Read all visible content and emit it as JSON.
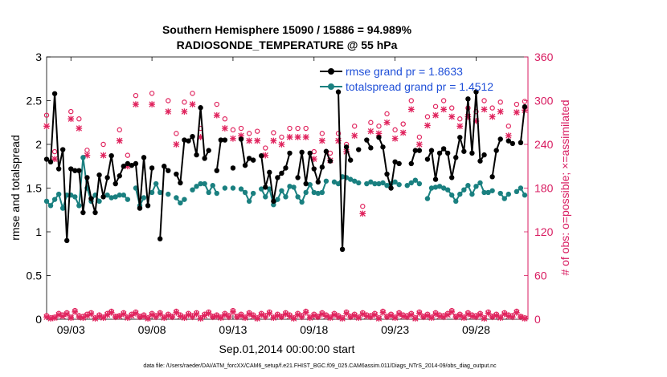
{
  "chart_data": {
    "type": "line",
    "title_line1": "Southern Hemisphere 15090 / 15886 = 94.989%",
    "title_line2": "RADIOSONDE_TEMPERATURE @ 55 hPa",
    "xlabel": "Sep.01,2014 00:00:00 start",
    "ylabel_left": "rmse and totalspread",
    "ylabel_right": "# of obs: o=possible; ×=assimilated",
    "footer": "data file: /Users/raeder/DAI/ATM_forcXX/CAM6_setup/f.e21.FHIST_BGC.f09_025.CAM6assim.011/Diags_NTrS_2014-09/obs_diag_output.nc",
    "xlim": [
      1.5,
      31.2
    ],
    "ylim_left": [
      0,
      3
    ],
    "ylim_right": [
      0,
      360
    ],
    "xticks": [
      3,
      8,
      13,
      18,
      23,
      28
    ],
    "xtick_labels": [
      "09/03",
      "09/08",
      "09/13",
      "09/18",
      "09/23",
      "09/28"
    ],
    "yticks_left": [
      0,
      0.5,
      1,
      1.5,
      2,
      2.5,
      3
    ],
    "ytick_labels_left": [
      "0",
      "0.5",
      "1",
      "1.5",
      "2",
      "2.5",
      "3"
    ],
    "yticks_right": [
      0,
      60,
      120,
      180,
      240,
      300,
      360
    ],
    "ytick_labels_right": [
      "0",
      "60",
      "120",
      "180",
      "240",
      "300",
      "360"
    ],
    "legend": [
      {
        "name": "rmse grand pr = 1.8633",
        "color": "#000000"
      },
      {
        "name": "totalspread grand pr = 1.4512",
        "color": "#1a8080"
      }
    ],
    "colors": {
      "rmse": "#000000",
      "spread": "#1a8080",
      "obs": "#e0245e",
      "legend_text": "#1f4fd8",
      "right_axis": "#d81b60"
    },
    "x": [
      1.5,
      1.75,
      2.0,
      2.25,
      2.5,
      2.75,
      3.0,
      3.25,
      3.5,
      3.75,
      4.0,
      4.25,
      4.5,
      4.75,
      5.0,
      5.25,
      5.5,
      5.75,
      6.0,
      6.25,
      6.5,
      6.75,
      7.0,
      7.25,
      7.5,
      7.75,
      8.0,
      8.25,
      8.5,
      8.75,
      9.0,
      9.25,
      9.5,
      9.75,
      10.0,
      10.25,
      10.5,
      10.75,
      11.0,
      11.25,
      11.5,
      11.75,
      12.0,
      12.25,
      12.5,
      12.75,
      13.0,
      13.25,
      13.5,
      13.75,
      14.0,
      14.25,
      14.5,
      14.75,
      15.0,
      15.25,
      15.5,
      15.75,
      16.0,
      16.25,
      16.5,
      16.75,
      17.0,
      17.25,
      17.5,
      17.75,
      18.0,
      18.25,
      18.5,
      18.75,
      19.0,
      19.25,
      19.5,
      19.75,
      20.0,
      20.25,
      20.5,
      20.75,
      21.0,
      21.25,
      21.5,
      21.75,
      22.0,
      22.25,
      22.5,
      22.75,
      23.0,
      23.25,
      23.5,
      23.75,
      24.0,
      24.25,
      24.5,
      24.75,
      25.0,
      25.25,
      25.5,
      25.75,
      26.0,
      26.25,
      26.5,
      26.75,
      27.0,
      27.25,
      27.5,
      27.75,
      28.0,
      28.25,
      28.5,
      28.75,
      29.0,
      29.25,
      29.5,
      29.75,
      30.0,
      30.25,
      30.5,
      30.75,
      31.0
    ],
    "series": [
      {
        "name": "rmse",
        "values": [
          1.83,
          1.8,
          2.58,
          1.72,
          1.94,
          0.9,
          1.72,
          1.7,
          1.7,
          1.22,
          1.62,
          1.38,
          1.22,
          1.65,
          1.4,
          1.62,
          1.87,
          1.55,
          1.64,
          1.75,
          1.78,
          1.76,
          1.78,
          1.27,
          1.85,
          1.3,
          1.73,
          null,
          0.92,
          1.75,
          1.7,
          null,
          1.66,
          1.56,
          2.05,
          2.04,
          2.09,
          1.88,
          2.42,
          1.84,
          1.93,
          null,
          1.7,
          2.05,
          2.05,
          null,
          1.73,
          null,
          2.06,
          1.76,
          1.84,
          1.82,
          null,
          1.87,
          1.51,
          1.68,
          1.35,
          1.62,
          1.67,
          1.73,
          1.9,
          null,
          1.62,
          1.91,
          1.55,
          1.9,
          1.72,
          1.57,
          1.74,
          1.92,
          1.81,
          null,
          2.6,
          0.8,
          1.97,
          1.82,
          null,
          1.94,
          null,
          2.05,
          1.96,
          null,
          2.08,
          1.97,
          1.66,
          1.5,
          1.8,
          1.78,
          null,
          null,
          1.78,
          1.93,
          1.93,
          null,
          1.83,
          1.93,
          1.6,
          1.9,
          1.95,
          1.9,
          1.62,
          1.85,
          2.08,
          1.92,
          2.52,
          1.9,
          2.6,
          1.81,
          1.88,
          null,
          1.63,
          1.93,
          2.06,
          null,
          2.04,
          2.01,
          null,
          2.02,
          2.43
        ]
      },
      {
        "name": "totalspread",
        "values": [
          1.35,
          1.3,
          1.37,
          1.43,
          1.27,
          1.42,
          1.42,
          1.4,
          1.3,
          1.85,
          1.5,
          1.35,
          1.42,
          1.35,
          null,
          1.42,
          1.39,
          1.4,
          1.42,
          1.42,
          1.37,
          null,
          1.5,
          1.3,
          1.39,
          null,
          1.45,
          1.55,
          1.45,
          null,
          1.43,
          null,
          1.39,
          1.33,
          1.37,
          null,
          1.48,
          1.52,
          1.55,
          1.55,
          1.45,
          1.53,
          1.44,
          null,
          1.5,
          null,
          1.5,
          null,
          1.49,
          1.45,
          1.35,
          1.44,
          null,
          1.49,
          1.4,
          1.49,
          1.31,
          1.37,
          1.47,
          1.4,
          1.52,
          1.51,
          1.4,
          1.34,
          1.45,
          1.54,
          1.45,
          1.44,
          1.45,
          1.58,
          null,
          1.57,
          1.55,
          1.63,
          1.62,
          1.6,
          1.58,
          1.56,
          null,
          1.55,
          1.57,
          1.55,
          1.55,
          1.56,
          1.53,
          1.55,
          1.57,
          1.54,
          null,
          1.53,
          1.56,
          1.59,
          1.55,
          null,
          1.38,
          1.5,
          1.51,
          1.52,
          1.5,
          1.48,
          1.42,
          1.35,
          1.43,
          1.48,
          1.53,
          1.43,
          1.52,
          1.56,
          1.45,
          1.45,
          1.47,
          null,
          1.44,
          1.38,
          1.43,
          null,
          1.46,
          1.5,
          1.42
        ]
      },
      {
        "name": "obs_possible",
        "axis": "right",
        "values": [
          5,
          2,
          3,
          8,
          6,
          9,
          3,
          12,
          5,
          4,
          7,
          9,
          2,
          6,
          3,
          8,
          11,
          4,
          5,
          9,
          3,
          7,
          10,
          4,
          6,
          2,
          8,
          5,
          9,
          3,
          7,
          4,
          11,
          6,
          3,
          8,
          5,
          9,
          2,
          7,
          10,
          4,
          6,
          3,
          8,
          5,
          12,
          4,
          7,
          3,
          9,
          6,
          2,
          8,
          5,
          10,
          3,
          7,
          4,
          9,
          6,
          2,
          8,
          5,
          11,
          3,
          7,
          4,
          9,
          6,
          3,
          8,
          5,
          2,
          10,
          4,
          7,
          3,
          9,
          6,
          5,
          8,
          2,
          11,
          4,
          7,
          3,
          9,
          6,
          5,
          8,
          2,
          10,
          4,
          7,
          3,
          9,
          6,
          5,
          8,
          12,
          4,
          7,
          3,
          9,
          6,
          5,
          8,
          2,
          10,
          4,
          7,
          3,
          9,
          6,
          5,
          11,
          4,
          2
        ]
      },
      {
        "name": "obs_assimilated",
        "axis": "right",
        "values": [
          3,
          1,
          2,
          6,
          4,
          7,
          2,
          10,
          3,
          2,
          5,
          7,
          1,
          4,
          2,
          6,
          9,
          3,
          4,
          7,
          2,
          5,
          8,
          3,
          4,
          1,
          6,
          3,
          7,
          2,
          5,
          3,
          9,
          4,
          2,
          6,
          3,
          7,
          1,
          5,
          8,
          3,
          4,
          2,
          6,
          3,
          10,
          3,
          5,
          2,
          7,
          4,
          1,
          6,
          3,
          8,
          2,
          5,
          3,
          7,
          4,
          1,
          6,
          3,
          9,
          2,
          5,
          3,
          7,
          4,
          2,
          6,
          3,
          1,
          8,
          3,
          5,
          2,
          7,
          4,
          3,
          6,
          1,
          9,
          3,
          5,
          2,
          7,
          4,
          3,
          6,
          1,
          8,
          3,
          5,
          2,
          7,
          4,
          3,
          6,
          10,
          3,
          5,
          2,
          7,
          4,
          3,
          6,
          1,
          8,
          3,
          5,
          2,
          7,
          4,
          3,
          9,
          3,
          1
        ]
      },
      {
        "name": "obs_possible_at_level",
        "axis": "right",
        "x": [
          1.5,
          2.0,
          3.0,
          3.5,
          4.0,
          5.0,
          6.0,
          6.5,
          7.0,
          8.0,
          9.0,
          9.5,
          10.0,
          10.5,
          11.0,
          12.0,
          12.5,
          13.0,
          13.5,
          14.0,
          14.5,
          15.0,
          15.5,
          16.0,
          16.5,
          17.0,
          17.5,
          18.0,
          18.5,
          19.0,
          19.5,
          20.0,
          20.5,
          21.0,
          21.5,
          22.0,
          22.5,
          23.0,
          23.5,
          24.0,
          24.5,
          25.0,
          25.5,
          26.0,
          26.5,
          27.0,
          27.5,
          28.0,
          28.5,
          29.0,
          29.5,
          30.0,
          30.5,
          31.0
        ],
        "values": [
          280,
          230,
          285,
          275,
          232,
          240,
          260,
          225,
          307,
          310,
          300,
          255,
          298,
          310,
          262,
          295,
          275,
          260,
          262,
          255,
          258,
          235,
          256,
          250,
          262,
          262,
          262,
          230,
          255,
          228,
          255,
          240,
          265,
          155,
          270,
          265,
          282,
          260,
          268,
          300,
          250,
          278,
          292,
          300,
          290,
          275,
          290,
          285,
          300,
          290,
          298,
          265,
          295,
          299
        ]
      },
      {
        "name": "obs_assimilated_at_level",
        "axis": "right",
        "x": [
          1.5,
          2.0,
          3.0,
          3.5,
          4.0,
          5.0,
          6.0,
          6.5,
          7.0,
          8.0,
          9.0,
          9.5,
          10.0,
          10.5,
          11.0,
          12.0,
          12.5,
          13.0,
          13.5,
          14.0,
          14.5,
          15.0,
          15.5,
          16.0,
          16.5,
          17.0,
          17.5,
          18.0,
          18.5,
          19.0,
          19.5,
          20.0,
          20.5,
          21.0,
          21.5,
          22.0,
          22.5,
          23.0,
          23.5,
          24.0,
          24.5,
          25.0,
          25.5,
          26.0,
          26.5,
          27.0,
          27.5,
          28.0,
          28.5,
          29.0,
          29.5,
          30.0,
          30.5,
          31.0
        ],
        "values": [
          265,
          220,
          275,
          262,
          225,
          225,
          245,
          210,
          295,
          295,
          285,
          240,
          285,
          295,
          250,
          280,
          262,
          248,
          252,
          245,
          245,
          225,
          245,
          240,
          250,
          250,
          250,
          220,
          245,
          218,
          245,
          230,
          252,
          145,
          258,
          255,
          270,
          248,
          256,
          288,
          240,
          266,
          280,
          288,
          278,
          265,
          278,
          272,
          288,
          278,
          285,
          252,
          284,
          287
        ]
      }
    ]
  }
}
